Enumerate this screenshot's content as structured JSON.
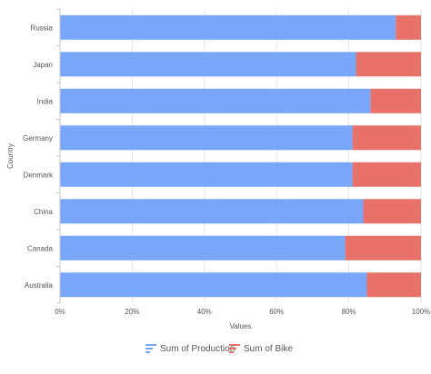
{
  "chart_data": {
    "type": "bar",
    "orientation": "horizontal",
    "stacked": true,
    "normalized": "100%",
    "xlabel": "Values",
    "ylabel": "Country",
    "xlim": [
      0,
      100
    ],
    "x_ticks": [
      "0%",
      "20%",
      "40%",
      "60%",
      "80%",
      "100%"
    ],
    "categories": [
      "Russia",
      "Japan",
      "India",
      "Germany",
      "Denmark",
      "China",
      "Canada",
      "Australia"
    ],
    "series": [
      {
        "name": "Sum of Production",
        "color": "#78a6f8",
        "values": [
          93,
          82,
          86,
          81,
          81,
          84,
          79,
          85
        ]
      },
      {
        "name": "Sum of Bike",
        "color": "#e8726a",
        "values": [
          7,
          18,
          14,
          19,
          19,
          16,
          21,
          15
        ]
      }
    ],
    "grid": "vertical",
    "legend_position": "bottom"
  }
}
